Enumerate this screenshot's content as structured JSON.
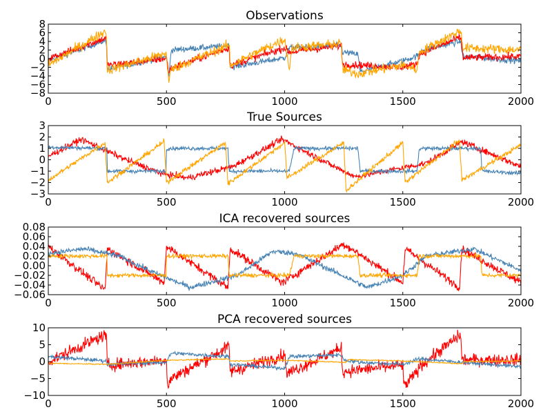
{
  "chart_data": [
    {
      "type": "line",
      "title": "Observations",
      "xlim": [
        0,
        2000
      ],
      "ylim": [
        -8,
        8
      ],
      "xticks": [
        0,
        500,
        1000,
        1500,
        2000
      ],
      "xtick_labels": [
        "0",
        "500",
        "1000",
        "1500",
        "2000"
      ],
      "yticks": [
        -8,
        -6,
        -4,
        -2,
        0,
        2,
        4,
        6,
        8
      ],
      "ytick_labels": [
        "−8",
        "−6",
        "−4",
        "−2",
        "0",
        "2",
        "4",
        "6",
        "8"
      ],
      "series": [
        {
          "color": "#4682b4",
          "noise": 0.5,
          "points": [
            [
              0,
              -0.5
            ],
            [
              245,
              4.3
            ],
            [
              250,
              -2.5
            ],
            [
              500,
              0.5
            ],
            [
              510,
              -4.3
            ],
            [
              520,
              2.0
            ],
            [
              765,
              3.0
            ],
            [
              770,
              -2.0
            ],
            [
              1000,
              0.2
            ],
            [
              1020,
              2.5
            ],
            [
              1240,
              3.0
            ],
            [
              1245,
              1.5
            ],
            [
              1310,
              1.0
            ],
            [
              1320,
              -3.0
            ],
            [
              1500,
              -0.5
            ],
            [
              1570,
              0.8
            ],
            [
              1580,
              2.0
            ],
            [
              1745,
              4.0
            ],
            [
              1755,
              0.5
            ],
            [
              2000,
              -0.5
            ]
          ]
        },
        {
          "color": "#ff0000",
          "noise": 0.6,
          "points": [
            [
              0,
              0
            ],
            [
              245,
              4.8
            ],
            [
              250,
              -1.5
            ],
            [
              500,
              0
            ],
            [
              510,
              -3.2
            ],
            [
              520,
              -2.2
            ],
            [
              765,
              2.5
            ],
            [
              770,
              -1.6
            ],
            [
              1000,
              2.5
            ],
            [
              1020,
              1.5
            ],
            [
              1240,
              3.0
            ],
            [
              1245,
              -1.3
            ],
            [
              1500,
              -2.0
            ],
            [
              1560,
              -1.2
            ],
            [
              1570,
              1.0
            ],
            [
              1745,
              5.0
            ],
            [
              1755,
              0.2
            ],
            [
              2000,
              0.5
            ]
          ]
        },
        {
          "color": "#ffa500",
          "noise": 0.8,
          "points": [
            [
              0,
              -1.5
            ],
            [
              245,
              6.5
            ],
            [
              250,
              -2.7
            ],
            [
              500,
              1.2
            ],
            [
              510,
              -5.5
            ],
            [
              520,
              -2.5
            ],
            [
              765,
              3.2
            ],
            [
              770,
              -1.5
            ],
            [
              1000,
              4.5
            ],
            [
              1020,
              -2.5
            ],
            [
              1030,
              2.5
            ],
            [
              1240,
              3.5
            ],
            [
              1245,
              -2.5
            ],
            [
              1310,
              -3.5
            ],
            [
              1500,
              -1.5
            ],
            [
              1560,
              -2.5
            ],
            [
              1570,
              1.5
            ],
            [
              1745,
              6.5
            ],
            [
              1755,
              2.5
            ],
            [
              2000,
              2.0
            ]
          ]
        }
      ]
    },
    {
      "type": "line",
      "title": "True Sources",
      "xlim": [
        0,
        2000
      ],
      "ylim": [
        -3,
        3
      ],
      "xticks": [
        0,
        500,
        1000,
        1500,
        2000
      ],
      "xtick_labels": [
        "0",
        "500",
        "1000",
        "1500",
        "2000"
      ],
      "yticks": [
        -3,
        -2,
        -1,
        0,
        1,
        2,
        3
      ],
      "ytick_labels": [
        "−3",
        "−2",
        "−1",
        "0",
        "1",
        "2",
        "3"
      ],
      "series": [
        {
          "color": "#ff0000",
          "noise": 0.2,
          "points": [
            [
              0,
              0.3
            ],
            [
              140,
              1.8
            ],
            [
              330,
              0
            ],
            [
              480,
              -1.2
            ],
            [
              590,
              -1.6
            ],
            [
              780,
              -0.6
            ],
            [
              990,
              1.8
            ],
            [
              1200,
              -0.5
            ],
            [
              1300,
              -1.5
            ],
            [
              1600,
              -0.3
            ],
            [
              1750,
              1.6
            ],
            [
              2000,
              -0.6
            ]
          ]
        },
        {
          "color": "#4682b4",
          "noise": 0.12,
          "points": [
            [
              0,
              1.1
            ],
            [
              249,
              1.0
            ],
            [
              250,
              -1.0
            ],
            [
              499,
              -1.0
            ],
            [
              500,
              1.0
            ],
            [
              760,
              1.0
            ],
            [
              765,
              -1.0
            ],
            [
              1020,
              -1.0
            ],
            [
              1040,
              1.0
            ],
            [
              1310,
              1.0
            ],
            [
              1320,
              -1.0
            ],
            [
              1560,
              -1.0
            ],
            [
              1570,
              1.0
            ],
            [
              1830,
              1.0
            ],
            [
              1835,
              -1.0
            ],
            [
              2000,
              -1.2
            ]
          ]
        },
        {
          "color": "#ffa500",
          "noise": 0.15,
          "points": [
            [
              0,
              -1.8
            ],
            [
              240,
              1.5
            ],
            [
              250,
              -2.0
            ],
            [
              490,
              1.6
            ],
            [
              500,
              -2.0
            ],
            [
              750,
              1.5
            ],
            [
              760,
              -2.1
            ],
            [
              1000,
              1.5
            ],
            [
              1010,
              -1.6
            ],
            [
              1250,
              1.5
            ],
            [
              1260,
              -2.7
            ],
            [
              1500,
              1.5
            ],
            [
              1510,
              -2.0
            ],
            [
              1740,
              1.7
            ],
            [
              1750,
              -1.8
            ],
            [
              2000,
              1.3
            ]
          ]
        }
      ]
    },
    {
      "type": "line",
      "title": "ICA recovered sources",
      "xlim": [
        0,
        2000
      ],
      "ylim": [
        -0.06,
        0.08
      ],
      "xticks": [
        0,
        500,
        1000,
        1500,
        2000
      ],
      "xtick_labels": [
        "0",
        "500",
        "1000",
        "1500",
        "2000"
      ],
      "yticks": [
        -0.06,
        -0.04,
        -0.02,
        0,
        0.02,
        0.04,
        0.06,
        0.08
      ],
      "ytick_labels": [
        "−0.06",
        "−0.04",
        "−0.02",
        "0.00",
        "0.02",
        "0.04",
        "0.06",
        "0.08"
      ],
      "series": [
        {
          "color": "#ff0000",
          "noise": 0.006,
          "points": [
            [
              0,
              0.04
            ],
            [
              240,
              -0.05
            ],
            [
              250,
              0.035
            ],
            [
              490,
              -0.035
            ],
            [
              500,
              0.04
            ],
            [
              760,
              -0.045
            ],
            [
              770,
              0.035
            ],
            [
              990,
              -0.035
            ],
            [
              1250,
              0.045
            ],
            [
              1500,
              -0.035
            ],
            [
              1510,
              0.035
            ],
            [
              1740,
              -0.045
            ],
            [
              1750,
              0.035
            ],
            [
              2000,
              -0.035
            ]
          ]
        },
        {
          "color": "#4682b4",
          "noise": 0.004,
          "points": [
            [
              0,
              0.025
            ],
            [
              150,
              0.035
            ],
            [
              300,
              0.02
            ],
            [
              450,
              -0.015
            ],
            [
              600,
              -0.045
            ],
            [
              800,
              -0.02
            ],
            [
              950,
              0.03
            ],
            [
              1050,
              0.025
            ],
            [
              1200,
              -0.01
            ],
            [
              1350,
              -0.045
            ],
            [
              1500,
              -0.02
            ],
            [
              1600,
              0.02
            ],
            [
              1800,
              0.035
            ],
            [
              2000,
              -0.01
            ]
          ]
        },
        {
          "color": "#ffa500",
          "noise": 0.003,
          "points": [
            [
              0,
              0.02
            ],
            [
              249,
              0.02
            ],
            [
              250,
              -0.02
            ],
            [
              499,
              -0.02
            ],
            [
              500,
              0.02
            ],
            [
              760,
              0.02
            ],
            [
              765,
              -0.02
            ],
            [
              1020,
              -0.02
            ],
            [
              1040,
              0.02
            ],
            [
              1310,
              0.02
            ],
            [
              1320,
              -0.02
            ],
            [
              1560,
              -0.02
            ],
            [
              1570,
              0.02
            ],
            [
              1830,
              0.02
            ],
            [
              1835,
              -0.02
            ],
            [
              2000,
              -0.02
            ]
          ]
        }
      ]
    },
    {
      "type": "line",
      "title": "PCA recovered sources",
      "xlim": [
        0,
        2000
      ],
      "ylim": [
        -10,
        10
      ],
      "xticks": [
        0,
        500,
        1000,
        1500,
        2000
      ],
      "xtick_labels": [
        "0",
        "500",
        "1000",
        "1500",
        "2000"
      ],
      "yticks": [
        -10,
        -5,
        0,
        5,
        10
      ],
      "ytick_labels": [
        "−10",
        "−5",
        "0",
        "5",
        "10"
      ],
      "series": [
        {
          "color": "#ff0000",
          "noise": 1.3,
          "points": [
            [
              0,
              0
            ],
            [
              245,
              8
            ],
            [
              250,
              -1
            ],
            [
              500,
              0.5
            ],
            [
              505,
              -7.5
            ],
            [
              520,
              -5
            ],
            [
              765,
              4.5
            ],
            [
              770,
              -3
            ],
            [
              1000,
              2
            ],
            [
              1010,
              -3.5
            ],
            [
              1240,
              4
            ],
            [
              1245,
              -3
            ],
            [
              1500,
              -1
            ],
            [
              1505,
              -7.5
            ],
            [
              1560,
              -3
            ],
            [
              1570,
              -1.5
            ],
            [
              1745,
              8
            ],
            [
              1750,
              0.5
            ],
            [
              2000,
              0.5
            ]
          ]
        },
        {
          "color": "#4682b4",
          "noise": 0.4,
          "points": [
            [
              0,
              1.5
            ],
            [
              245,
              0.2
            ],
            [
              250,
              -0.8
            ],
            [
              500,
              -0.2
            ],
            [
              520,
              2.5
            ],
            [
              765,
              1.5
            ],
            [
              770,
              -0.8
            ],
            [
              1000,
              -2
            ],
            [
              1020,
              1.5
            ],
            [
              1240,
              2
            ],
            [
              1250,
              0.5
            ],
            [
              1320,
              -0.2
            ],
            [
              1500,
              -0.8
            ],
            [
              1570,
              0.8
            ],
            [
              1750,
              -0.2
            ],
            [
              2000,
              -1.5
            ]
          ]
        },
        {
          "color": "#ffa500",
          "noise": 0.12,
          "points": [
            [
              0,
              -0.5
            ],
            [
              250,
              -0.8
            ],
            [
              500,
              0.4
            ],
            [
              760,
              0.8
            ],
            [
              770,
              0.2
            ],
            [
              1000,
              0.4
            ],
            [
              1260,
              -0.2
            ],
            [
              1270,
              0.6
            ],
            [
              1500,
              0.2
            ],
            [
              1750,
              -0.6
            ],
            [
              1760,
              0
            ],
            [
              2000,
              0.2
            ]
          ]
        }
      ]
    }
  ]
}
